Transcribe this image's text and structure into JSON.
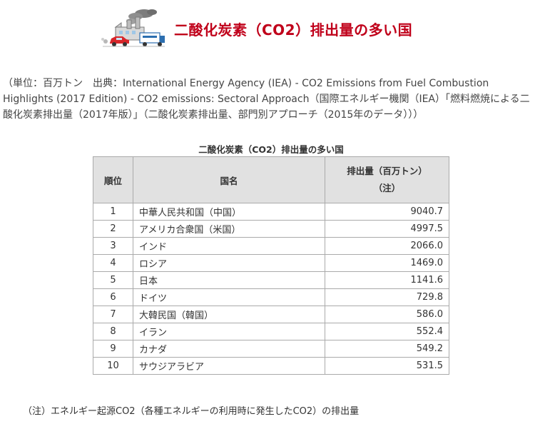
{
  "header": {
    "title": "二酸化炭素（CO2）排出量の多い国",
    "illustration_icon": "factory-and-cars-illustration",
    "title_color": "#c0001a"
  },
  "source_note": "（単位：百万トン　出典：International Energy Agency (IEA) - CO2 Emissions from Fuel Combustion Highlights (2017 Edition) - CO2 emissions: Sectoral Approach（国際エネルギー機関（IEA）「燃料燃焼による二酸化炭素排出量（2017年版）」（二酸化炭素排出量、部門別アプローチ（2015年のデータ）））",
  "table": {
    "caption": "二酸化炭素（CO2）排出量の多い国",
    "headers": {
      "rank": "順位",
      "country": "国名",
      "emission_line1": "排出量（百万トン）",
      "emission_line2": "（注）"
    },
    "rows": [
      {
        "rank": "1",
        "country": "中華人民共和国（中国）",
        "value": "9040.7"
      },
      {
        "rank": "2",
        "country": "アメリカ合衆国（米国）",
        "value": "4997.5"
      },
      {
        "rank": "3",
        "country": "インド",
        "value": "2066.0"
      },
      {
        "rank": "4",
        "country": "ロシア",
        "value": "1469.0"
      },
      {
        "rank": "5",
        "country": "日本",
        "value": "1141.6"
      },
      {
        "rank": "6",
        "country": "ドイツ",
        "value": "729.8"
      },
      {
        "rank": "7",
        "country": "大韓民国（韓国）",
        "value": "586.0"
      },
      {
        "rank": "8",
        "country": "イラン",
        "value": "552.4"
      },
      {
        "rank": "9",
        "country": "カナダ",
        "value": "549.2"
      },
      {
        "rank": "10",
        "country": "サウジアラビア",
        "value": "531.5"
      }
    ]
  },
  "footnote": "（注）エネルギー起源CO2（各種エネルギーの利用時に発生したCO2）の排出量"
}
